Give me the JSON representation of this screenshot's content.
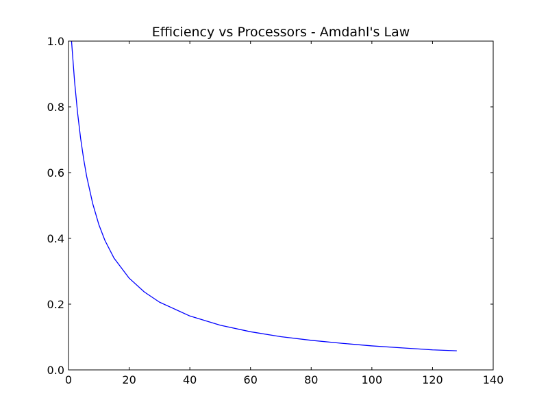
{
  "chart_data": {
    "type": "line",
    "title": "Efficiency vs Processors - Amdahl's Law",
    "xlabel": "",
    "ylabel": "",
    "xlim": [
      0,
      140
    ],
    "ylim": [
      0.0,
      1.0
    ],
    "xticks": [
      0,
      20,
      40,
      60,
      80,
      100,
      120,
      140
    ],
    "xtick_labels": [
      "0",
      "20",
      "40",
      "60",
      "80",
      "100",
      "120",
      "140"
    ],
    "yticks": [
      0.0,
      0.2,
      0.4,
      0.6,
      0.8,
      1.0
    ],
    "ytick_labels": [
      "0.0",
      "0.2",
      "0.4",
      "0.6",
      "0.8",
      "1.0"
    ],
    "grid": false,
    "series": [
      {
        "color": "#0000ff",
        "x": [
          1,
          2,
          3,
          4,
          5,
          6,
          8,
          10,
          12,
          15,
          20,
          25,
          30,
          40,
          50,
          60,
          70,
          80,
          90,
          100,
          110,
          120,
          128
        ],
        "y": [
          1.0,
          0.877,
          0.781,
          0.704,
          0.641,
          0.588,
          0.505,
          0.442,
          0.394,
          0.34,
          0.279,
          0.237,
          0.206,
          0.164,
          0.136,
          0.116,
          0.101,
          0.09,
          0.081,
          0.073,
          0.067,
          0.061,
          0.058
        ]
      }
    ]
  }
}
